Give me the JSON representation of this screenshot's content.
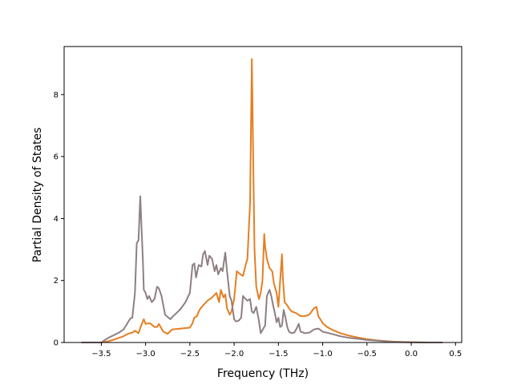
{
  "chart_data": {
    "type": "line",
    "title": "",
    "xlabel": "Frequency (THz)",
    "ylabel": "Partial Density of States",
    "xlim": [
      -3.92,
      0.57
    ],
    "ylim": [
      0,
      9.55
    ],
    "x_ticks": [
      -3.5,
      -3.0,
      -2.5,
      -2.0,
      -1.5,
      -1.0,
      -0.5,
      0.0,
      0.5
    ],
    "x_tick_labels": [
      "−3.5",
      "−3.0",
      "−2.5",
      "−2.0",
      "−1.5",
      "−1.0",
      "−0.5",
      "0.0",
      "0.5"
    ],
    "y_ticks": [
      0,
      2,
      4,
      6,
      8
    ],
    "y_tick_labels": [
      "0",
      "2",
      "4",
      "6",
      "8"
    ],
    "grid": false,
    "legend": "none",
    "series": [
      {
        "color": "#e67e22",
        "x": [
          -3.72,
          -3.5,
          -3.42,
          -3.35,
          -3.3,
          -3.25,
          -3.2,
          -3.15,
          -3.12,
          -3.08,
          -3.05,
          -3.02,
          -3.0,
          -2.95,
          -2.9,
          -2.87,
          -2.85,
          -2.8,
          -2.75,
          -2.7,
          -2.6,
          -2.5,
          -2.47,
          -2.45,
          -2.42,
          -2.4,
          -2.38,
          -2.35,
          -2.3,
          -2.25,
          -2.2,
          -2.17,
          -2.15,
          -2.12,
          -2.1,
          -2.08,
          -2.05,
          -2.03,
          -2.0,
          -1.97,
          -1.93,
          -1.9,
          -1.87,
          -1.85,
          -1.82,
          -1.8,
          -1.78,
          -1.77,
          -1.75,
          -1.72,
          -1.7,
          -1.68,
          -1.66,
          -1.65,
          -1.63,
          -1.6,
          -1.57,
          -1.55,
          -1.52,
          -1.5,
          -1.48,
          -1.46,
          -1.45,
          -1.43,
          -1.4,
          -1.38,
          -1.35,
          -1.3,
          -1.25,
          -1.2,
          -1.15,
          -1.1,
          -1.07,
          -1.05,
          -1.02,
          -1.0,
          -0.95,
          -0.9,
          -0.8,
          -0.7,
          -0.6,
          -0.5,
          -0.4,
          -0.3,
          -0.2,
          -0.1,
          0.0,
          0.1,
          0.2,
          0.35
        ],
        "y": [
          0.0,
          0.0,
          0.04,
          0.1,
          0.15,
          0.2,
          0.28,
          0.32,
          0.38,
          0.3,
          0.55,
          0.75,
          0.6,
          0.62,
          0.5,
          0.5,
          0.6,
          0.35,
          0.28,
          0.42,
          0.45,
          0.48,
          0.62,
          0.8,
          0.85,
          1.0,
          1.1,
          1.2,
          1.35,
          1.45,
          1.6,
          1.3,
          1.7,
          1.45,
          1.55,
          1.1,
          0.9,
          1.0,
          1.4,
          2.3,
          2.2,
          2.15,
          2.5,
          2.7,
          4.5,
          9.15,
          5.0,
          3.0,
          1.8,
          1.4,
          1.6,
          2.0,
          3.5,
          3.1,
          2.7,
          2.4,
          2.3,
          1.9,
          1.6,
          1.15,
          2.0,
          2.85,
          2.1,
          1.3,
          1.2,
          1.1,
          1.0,
          0.95,
          0.85,
          0.85,
          0.9,
          1.1,
          1.15,
          0.85,
          0.72,
          0.62,
          0.5,
          0.42,
          0.3,
          0.22,
          0.16,
          0.11,
          0.07,
          0.05,
          0.03,
          0.02,
          0.01,
          0.005,
          0.0,
          0.0
        ]
      },
      {
        "color": "#8e7f82",
        "x": [
          -3.72,
          -3.5,
          -3.45,
          -3.4,
          -3.35,
          -3.3,
          -3.25,
          -3.22,
          -3.2,
          -3.17,
          -3.15,
          -3.12,
          -3.1,
          -3.08,
          -3.06,
          -3.05,
          -3.03,
          -3.02,
          -3.0,
          -2.98,
          -2.96,
          -2.93,
          -2.9,
          -2.87,
          -2.85,
          -2.82,
          -2.8,
          -2.78,
          -2.75,
          -2.72,
          -2.7,
          -2.65,
          -2.6,
          -2.55,
          -2.5,
          -2.47,
          -2.45,
          -2.43,
          -2.4,
          -2.37,
          -2.35,
          -2.33,
          -2.3,
          -2.28,
          -2.25,
          -2.22,
          -2.2,
          -2.18,
          -2.15,
          -2.13,
          -2.1,
          -2.08,
          -2.05,
          -2.03,
          -2.0,
          -1.98,
          -1.95,
          -1.92,
          -1.9,
          -1.87,
          -1.85,
          -1.82,
          -1.8,
          -1.78,
          -1.75,
          -1.72,
          -1.7,
          -1.68,
          -1.65,
          -1.63,
          -1.6,
          -1.58,
          -1.56,
          -1.54,
          -1.52,
          -1.5,
          -1.48,
          -1.46,
          -1.44,
          -1.42,
          -1.4,
          -1.38,
          -1.35,
          -1.32,
          -1.3,
          -1.27,
          -1.25,
          -1.2,
          -1.15,
          -1.1,
          -1.05,
          -1.0,
          -0.9,
          -0.8,
          -0.7,
          -0.6,
          -0.5,
          -0.4,
          -0.3,
          -0.2,
          -0.1,
          0.0,
          0.1,
          0.2,
          0.35
        ],
        "y": [
          0.0,
          0.0,
          0.1,
          0.18,
          0.25,
          0.32,
          0.42,
          0.55,
          0.65,
          0.78,
          0.8,
          1.6,
          3.2,
          3.3,
          4.72,
          4.0,
          2.6,
          1.7,
          1.6,
          1.4,
          1.5,
          1.3,
          1.4,
          1.8,
          1.75,
          1.5,
          1.2,
          0.9,
          0.82,
          0.75,
          0.82,
          0.95,
          1.1,
          1.3,
          1.6,
          2.5,
          2.55,
          2.1,
          2.5,
          2.45,
          2.85,
          2.95,
          2.5,
          2.8,
          2.7,
          2.3,
          2.5,
          2.2,
          2.4,
          2.3,
          2.9,
          2.3,
          1.5,
          1.35,
          0.75,
          0.68,
          0.7,
          0.8,
          1.5,
          1.4,
          1.35,
          1.4,
          1.0,
          0.95,
          1.15,
          0.7,
          0.3,
          0.4,
          0.55,
          1.5,
          1.7,
          1.5,
          1.2,
          0.95,
          0.65,
          0.8,
          0.5,
          0.55,
          1.05,
          0.8,
          0.5,
          0.35,
          0.3,
          0.32,
          0.42,
          0.6,
          0.35,
          0.3,
          0.32,
          0.42,
          0.45,
          0.35,
          0.28,
          0.2,
          0.15,
          0.12,
          0.08,
          0.06,
          0.04,
          0.02,
          0.01,
          0.005,
          0.0,
          0.0,
          0.0
        ]
      }
    ]
  }
}
